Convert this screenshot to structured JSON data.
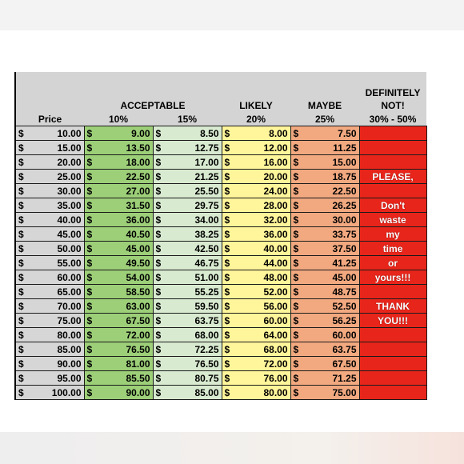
{
  "headers": {
    "acceptable": "ACCEPTABLE",
    "likely": "LIKELY",
    "maybe": "MAYBE",
    "definitely_line1": "DEFINITELY",
    "definitely_line2": "NOT!",
    "price": "Price",
    "pct10": "10%",
    "pct15": "15%",
    "pct20": "20%",
    "pct25": "25%",
    "pct_def": "30% - 50%"
  },
  "currency": "$",
  "rows": [
    {
      "price": "10.00",
      "p10": "9.00",
      "p15": "8.50",
      "p20": "8.00",
      "p25": "7.50",
      "note": ""
    },
    {
      "price": "15.00",
      "p10": "13.50",
      "p15": "12.75",
      "p20": "12.00",
      "p25": "11.25",
      "note": ""
    },
    {
      "price": "20.00",
      "p10": "18.00",
      "p15": "17.00",
      "p20": "16.00",
      "p25": "15.00",
      "note": ""
    },
    {
      "price": "25.00",
      "p10": "22.50",
      "p15": "21.25",
      "p20": "20.00",
      "p25": "18.75",
      "note": "PLEASE,"
    },
    {
      "price": "30.00",
      "p10": "27.00",
      "p15": "25.50",
      "p20": "24.00",
      "p25": "22.50",
      "note": ""
    },
    {
      "price": "35.00",
      "p10": "31.50",
      "p15": "29.75",
      "p20": "28.00",
      "p25": "26.25",
      "note": "Don't"
    },
    {
      "price": "40.00",
      "p10": "36.00",
      "p15": "34.00",
      "p20": "32.00",
      "p25": "30.00",
      "note": "waste"
    },
    {
      "price": "45.00",
      "p10": "40.50",
      "p15": "38.25",
      "p20": "36.00",
      "p25": "33.75",
      "note": "my"
    },
    {
      "price": "50.00",
      "p10": "45.00",
      "p15": "42.50",
      "p20": "40.00",
      "p25": "37.50",
      "note": "time"
    },
    {
      "price": "55.00",
      "p10": "49.50",
      "p15": "46.75",
      "p20": "44.00",
      "p25": "41.25",
      "note": "or"
    },
    {
      "price": "60.00",
      "p10": "54.00",
      "p15": "51.00",
      "p20": "48.00",
      "p25": "45.00",
      "note": "yours!!!"
    },
    {
      "price": "65.00",
      "p10": "58.50",
      "p15": "55.25",
      "p20": "52.00",
      "p25": "48.75",
      "note": ""
    },
    {
      "price": "70.00",
      "p10": "63.00",
      "p15": "59.50",
      "p20": "56.00",
      "p25": "52.50",
      "note": "THANK"
    },
    {
      "price": "75.00",
      "p10": "67.50",
      "p15": "63.75",
      "p20": "60.00",
      "p25": "56.25",
      "note": "YOU!!!"
    },
    {
      "price": "80.00",
      "p10": "72.00",
      "p15": "68.00",
      "p20": "64.00",
      "p25": "60.00",
      "note": ""
    },
    {
      "price": "85.00",
      "p10": "76.50",
      "p15": "72.25",
      "p20": "68.00",
      "p25": "63.75",
      "note": ""
    },
    {
      "price": "90.00",
      "p10": "81.00",
      "p15": "76.50",
      "p20": "72.00",
      "p25": "67.50",
      "note": ""
    },
    {
      "price": "95.00",
      "p10": "85.50",
      "p15": "80.75",
      "p20": "76.00",
      "p25": "71.25",
      "note": ""
    },
    {
      "price": "100.00",
      "p10": "90.00",
      "p15": "85.00",
      "p20": "80.00",
      "p25": "75.00",
      "note": ""
    }
  ],
  "colors": {
    "price": "#d6d6d6",
    "acceptable_10": "#9ccf78",
    "acceptable_15": "#d8ead0",
    "likely": "#fff59a",
    "maybe": "#f2a980",
    "definitely_not": "#e8251a"
  }
}
